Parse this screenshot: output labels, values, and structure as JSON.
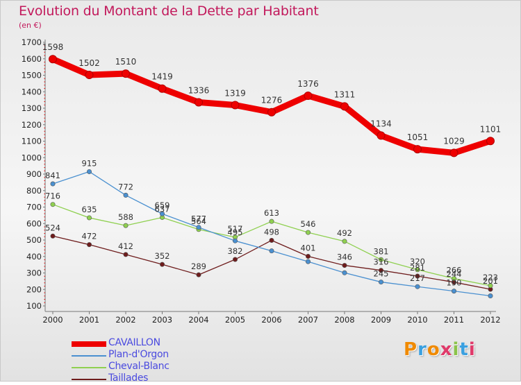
{
  "header": {
    "title": "Evolution du Montant de la Dette par Habitant",
    "unit": "(en €)"
  },
  "logo": {
    "text": "Proxiti",
    "letter_colors": [
      "#f08a00",
      "#3aa0e0",
      "#f08a00",
      "#e03a6a",
      "#8bc34a",
      "#3aa0e0",
      "#e03a6a"
    ]
  },
  "chart_data": {
    "type": "line",
    "title": "Evolution du Montant de la Dette par Habitant",
    "subtitle": "(en €)",
    "xlabel": "",
    "ylabel": "",
    "x": [
      "2000",
      "2001",
      "2002",
      "2003",
      "2004",
      "2005",
      "2006",
      "2007",
      "2008",
      "2009",
      "2010",
      "2011",
      "2012"
    ],
    "ylim": [
      100,
      1700
    ],
    "yticks": [
      100,
      200,
      300,
      400,
      500,
      600,
      700,
      800,
      900,
      1000,
      1100,
      1200,
      1300,
      1400,
      1500,
      1600,
      1700
    ],
    "grid": false,
    "legend_position": "bottom-left",
    "series": [
      {
        "name": "CAVAILLON",
        "color": "#ee0000",
        "values": [
          1598,
          1502,
          1510,
          1419,
          1336,
          1319,
          1276,
          1376,
          1311,
          1134,
          1051,
          1029,
          1101
        ],
        "labels": [
          "1598",
          "1502",
          "1510",
          "1419",
          "1336",
          "1319",
          "1276",
          "1376",
          "1311",
          "1134",
          "1051",
          "1029",
          "1101"
        ]
      },
      {
        "name": "Plan-d'Orgon",
        "color": "#4a90d0",
        "values": [
          841,
          915,
          772,
          659,
          577,
          495,
          434,
          369,
          301,
          245,
          217,
          190,
          161
        ],
        "labels": [
          "841",
          "915",
          "772",
          "659",
          "577",
          "495",
          "",
          "",
          "",
          "245",
          "217",
          "190",
          ""
        ]
      },
      {
        "name": "Cheval-Blanc",
        "color": "#8fd050",
        "values": [
          716,
          635,
          588,
          637,
          564,
          517,
          613,
          546,
          492,
          381,
          320,
          266,
          223
        ],
        "labels": [
          "716",
          "635",
          "588",
          "637",
          "564",
          "517",
          "613",
          "546",
          "492",
          "381",
          "320",
          "266",
          "223"
        ]
      },
      {
        "name": "Taillades",
        "color": "#6e1c1c",
        "values": [
          524,
          472,
          412,
          352,
          289,
          382,
          498,
          401,
          346,
          316,
          281,
          244,
          201
        ],
        "labels": [
          "524",
          "472",
          "412",
          "352",
          "289",
          "382",
          "498",
          "401",
          "346",
          "316",
          "281",
          "244",
          "201"
        ]
      }
    ]
  }
}
